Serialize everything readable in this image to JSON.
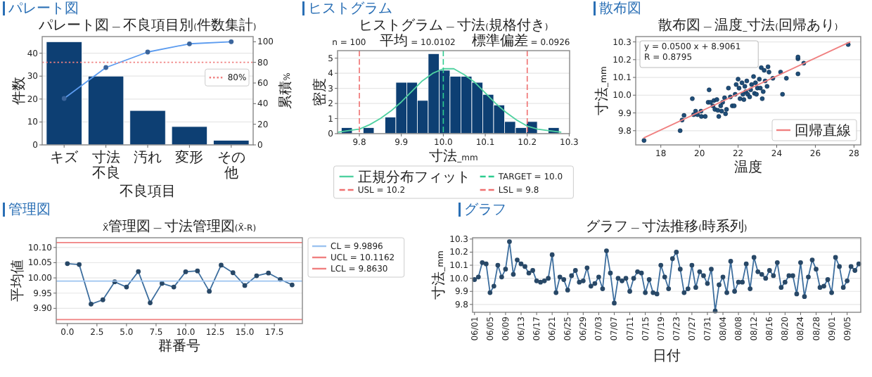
{
  "chart_data": [
    {
      "type": "bar",
      "subtitle": "パレート図",
      "title": "パレート図 — 不良項目別(件数集計)",
      "xlabel": "不良項目",
      "ylabel": "件数",
      "y2label": "累積%",
      "categories": [
        "キズ",
        "寸法不良",
        "汚れ",
        "変形",
        "その他"
      ],
      "ylim": [
        0,
        47.25
      ],
      "yticks": [
        0,
        10,
        20,
        30,
        40
      ],
      "y2lim": [
        0,
        105
      ],
      "y2ticks": [
        0,
        20,
        40,
        60,
        80,
        100
      ],
      "grid": "y",
      "legend": "right",
      "marker": "circle",
      "series": [
        {
          "color": "#0d3f73",
          "values": [
            45,
            30,
            15,
            8,
            2
          ]
        },
        {
          "type": "line",
          "axis": "y2",
          "color": "#5b9bef",
          "values": [
            45,
            75,
            90,
            98,
            100
          ]
        }
      ],
      "ref_lines": [
        {
          "axis": "y2",
          "value": 80,
          "label": "80%",
          "color": "#f08080",
          "line_style": "dotted"
        }
      ]
    },
    {
      "type": "histogram",
      "subtitle": "ヒストグラム",
      "title": "ヒストグラム — 寸法(規格付き)",
      "xlabel": "寸法_mm",
      "ylabel": "密度",
      "xlim": [
        9.748,
        10.301
      ],
      "xticks": [
        9.8,
        9.9,
        {
          "value": 10,
          "label": "10.0"
        },
        10.1,
        10.2,
        10.3
      ],
      "ylim": [
        0,
        5.5
      ],
      "yticks": [
        0,
        1,
        2,
        3,
        4,
        5
      ],
      "grid": "y",
      "legend": "bottom",
      "bins": [
        9.757,
        9.783,
        9.809,
        9.835,
        9.861,
        9.887,
        9.913,
        9.938,
        9.964,
        9.99,
        10.016,
        10.042,
        10.068,
        10.094,
        10.12,
        10.146,
        10.172,
        10.198,
        10.224,
        10.25,
        10.276
      ],
      "series": [
        {
          "color": "#0d3f73",
          "values": [
            0.4,
            0,
            0.4,
            0,
            1.1,
            3.4,
            3.4,
            2.2,
            5.3,
            4.2,
            3.8,
            3.8,
            3.4,
            2.6,
            1.9,
            0.8,
            0.4,
            0.8,
            0,
            0.4
          ]
        },
        {
          "type": "line",
          "name": "正規分布フィット",
          "color": "#4fd1a0",
          "x": [
            9.75,
            9.775,
            9.8,
            9.825,
            9.85,
            9.875,
            9.9,
            9.925,
            9.95,
            9.975,
            10.0,
            10.01,
            10.025,
            10.05,
            10.075,
            10.1,
            10.125,
            10.15,
            10.175,
            10.2,
            10.225,
            10.25,
            10.28
          ],
          "values": [
            0.1,
            0.2,
            0.3,
            0.6,
            1.0,
            1.5,
            2.1,
            2.8,
            3.5,
            4.0,
            4.3,
            4.3,
            4.3,
            3.9,
            3.4,
            2.7,
            2.0,
            1.4,
            0.9,
            0.5,
            0.3,
            0.2,
            0.1
          ]
        }
      ],
      "ref_lines": [
        {
          "axis": "x",
          "value": 10.0,
          "label": "TARGET = 10.0",
          "color": "#2ecc8f",
          "line_style": "dashed"
        },
        {
          "axis": "x",
          "value": 10.2,
          "label": "USL = 10.2",
          "color": "#f07070",
          "line_style": "dashed"
        },
        {
          "axis": "x",
          "value": 9.8,
          "label": "LSL = 9.8",
          "color": "#f07070",
          "line_style": "dashed"
        }
      ],
      "annotations": [
        "n = 100",
        "平均 = 10.0102",
        "標準偏差 = 0.0926"
      ]
    },
    {
      "type": "scatter",
      "subtitle": "散布図",
      "title": "散布図 — 温度_寸法(回帰あり)",
      "xlabel": "温度",
      "ylabel": "寸法_mm",
      "xlim": [
        16.7,
        28.35
      ],
      "xticks": [
        18,
        20,
        22,
        24,
        26,
        28
      ],
      "ylim": [
        9.72,
        10.33
      ],
      "yticks": [
        9.8,
        9.9,
        {
          "value": 10,
          "label": "10.0"
        },
        10.1,
        10.2,
        10.3
      ],
      "grid": "y",
      "legend": "bottom right",
      "series": [
        {
          "color": "#1f4e79",
          "x": [
            17.13,
            19.0,
            19.1,
            19.2,
            19.63,
            19.8,
            19.7,
            19.9,
            20.08,
            20.1,
            20.3,
            20.45,
            20.5,
            20.57,
            20.7,
            20.75,
            20.8,
            20.9,
            20.95,
            21.0,
            21.1,
            21.15,
            21.2,
            21.3,
            21.35,
            21.4,
            21.5,
            21.6,
            21.7,
            21.8,
            21.85,
            21.9,
            22.0,
            22.05,
            22.1,
            22.2,
            22.25,
            22.3,
            22.35,
            22.4,
            22.45,
            22.5,
            22.6,
            22.65,
            22.7,
            22.8,
            22.85,
            22.9,
            22.95,
            23.0,
            23.1,
            23.15,
            23.2,
            23.25,
            23.3,
            23.35,
            23.4,
            23.5,
            23.55,
            23.6,
            23.8,
            24.2,
            24.3,
            24.5,
            25.1,
            25.1,
            25.1,
            25.4,
            27.7
          ],
          "values": [
            9.745,
            9.8,
            9.86,
            9.886,
            9.98,
            9.91,
            9.89,
            9.89,
            9.91,
            9.88,
            9.88,
            9.96,
            10.03,
            9.96,
            9.94,
            9.97,
            9.92,
            9.975,
            9.915,
            9.88,
            9.94,
            9.91,
            9.96,
            9.985,
            9.895,
            9.92,
            10.04,
            9.99,
            9.94,
            9.94,
            10.005,
            10.06,
            10.09,
            10.04,
            9.98,
            10.07,
            10.005,
            9.975,
            10.05,
            10.02,
            10.08,
            10.005,
            9.99,
            10.03,
            10.06,
            10.105,
            10.01,
            10.07,
            10.005,
            10.04,
            10.09,
            10.04,
            10.155,
            9.98,
            10.02,
            10.14,
            10.08,
            10.05,
            10.16,
            10.13,
            10.095,
            10.13,
            10.005,
            10.095,
            10.205,
            10.215,
            10.12,
            10.18,
            10.285
          ]
        },
        {
          "type": "line",
          "name": "回帰直線",
          "color": "#f08080",
          "x": [
            17.13,
            27.79
          ],
          "values": [
            9.76,
            10.3
          ]
        }
      ],
      "annotations": [
        "y = 0.0500 x + 8.9061",
        "R = 0.8795"
      ]
    },
    {
      "type": "line",
      "subtitle": "管理図",
      "title": "X̄管理図 — 寸法管理図(X̄-R)",
      "xlabel": "群番号",
      "ylabel": "平均値",
      "xlim": [
        -0.94,
        19.87
      ],
      "xticks": [
        {
          "value": 0,
          "label": "0.0"
        },
        {
          "value": 2.5,
          "label": "2.5"
        },
        {
          "value": 5,
          "label": "5.0"
        },
        {
          "value": 7.5,
          "label": "7.5"
        },
        {
          "value": 10,
          "label": "10.0"
        },
        {
          "value": 12.5,
          "label": "12.5"
        },
        {
          "value": 15,
          "label": "15.0"
        },
        {
          "value": 17.5,
          "label": "17.5"
        }
      ],
      "ylim": [
        9.85,
        10.132
      ],
      "yticks": [
        {
          "value": 9.9,
          "label": "9.90"
        },
        {
          "value": 9.95,
          "label": "9.95"
        },
        {
          "value": 10,
          "label": "10.00"
        },
        {
          "value": 10.05,
          "label": "10.05"
        },
        {
          "value": 10.1,
          "label": "10.10"
        }
      ],
      "grid": "y",
      "legend": "right",
      "marker": "circle",
      "x": [
        0,
        1,
        2,
        3,
        4,
        5,
        6,
        7,
        8,
        9,
        10,
        11,
        12,
        13,
        14,
        15,
        16,
        17,
        18,
        19
      ],
      "series": [
        {
          "color": "#3d6e9e",
          "values": [
            10.047,
            10.044,
            9.914,
            9.928,
            9.987,
            9.97,
            10.021,
            9.918,
            9.982,
            9.97,
            10.02,
            10.023,
            9.956,
            10.042,
            10.017,
            9.975,
            10.007,
            10.016,
            9.995,
            9.977
          ]
        }
      ],
      "ref_lines": [
        {
          "axis": "y",
          "value": 9.9896,
          "label": "CL = 9.9896",
          "color": "#9cc3f0",
          "line_style": "solid"
        },
        {
          "axis": "y",
          "value": 10.1162,
          "label": "UCL = 10.1162",
          "color": "#f08080",
          "line_style": "solid"
        },
        {
          "axis": "y",
          "value": 9.863,
          "label": "LCL = 9.8630",
          "color": "#f08080",
          "line_style": "solid"
        }
      ]
    },
    {
      "type": "line",
      "subtitle": "グラフ",
      "title": "グラフ — 寸法推移(時系列)",
      "xlabel": "日付",
      "ylabel": "寸法_mm",
      "ylim": [
        9.74,
        10.31
      ],
      "yticks": [
        9.8,
        9.9,
        {
          "value": 10,
          "label": "10.0"
        },
        10.1,
        10.2,
        10.3
      ],
      "grid": "y",
      "marker": "circle",
      "categories": [
        "06/01",
        null,
        null,
        null,
        "06/05",
        null,
        null,
        null,
        "06/09",
        null,
        null,
        null,
        "06/13",
        null,
        null,
        null,
        "06/17",
        null,
        null,
        null,
        "06/21",
        null,
        null,
        null,
        "06/25",
        null,
        null,
        null,
        "06/29",
        null,
        null,
        null,
        "07/03",
        null,
        null,
        null,
        "07/07",
        null,
        null,
        null,
        "07/11",
        null,
        null,
        null,
        "07/15",
        null,
        null,
        null,
        "07/19",
        null,
        null,
        null,
        "07/23",
        null,
        null,
        null,
        "07/27",
        null,
        null,
        null,
        "07/31",
        null,
        null,
        null,
        "08/04",
        null,
        null,
        null,
        "08/08",
        null,
        null,
        null,
        "08/12",
        null,
        null,
        null,
        "08/16",
        null,
        null,
        null,
        "08/20",
        null,
        null,
        null,
        "08/24",
        null,
        null,
        null,
        "08/28",
        null,
        null,
        null,
        "09/01",
        null,
        null,
        null,
        "09/05",
        null,
        null,
        null
      ],
      "series": [
        {
          "color": "#3d6e9e",
          "values": [
            9.99,
            10.01,
            10.12,
            10.11,
            9.89,
            9.94,
            10.1,
            10.01,
            10.07,
            10.28,
            10.03,
            10.14,
            10.11,
            10.09,
            10.04,
            10.06,
            9.98,
            9.97,
            9.98,
            10.0,
            10.18,
            9.89,
            10.01,
            9.99,
            9.91,
            10.02,
            10.06,
            9.97,
            9.98,
            10.08,
            9.94,
            9.96,
            10.01,
            9.92,
            10.21,
            10.04,
            9.81,
            10.0,
            9.98,
            10.0,
            9.9,
            10.0,
            10.05,
            10.04,
            9.89,
            9.99,
            9.89,
            9.88,
            10.1,
            10.01,
            9.92,
            10.15,
            10.2,
            10.07,
            9.89,
            9.92,
            10.1,
            9.93,
            10.05,
            10.02,
            9.96,
            10.07,
            9.75,
            9.95,
            10.01,
            9.89,
            10.13,
            9.9,
            9.97,
            9.97,
            10.11,
            9.92,
            10.16,
            10.05,
            10.03,
            10.0,
            10.06,
            10.02,
            10.12,
            9.93,
            9.97,
            10.02,
            10.02,
            9.88,
            10.12,
            9.86,
            10.01,
            10.14,
            10.07,
            9.93,
            9.94,
            9.99,
            9.89,
            10.16,
            10.09,
            9.93,
            9.98,
            10.09,
            10.06,
            10.11
          ]
        }
      ]
    }
  ]
}
